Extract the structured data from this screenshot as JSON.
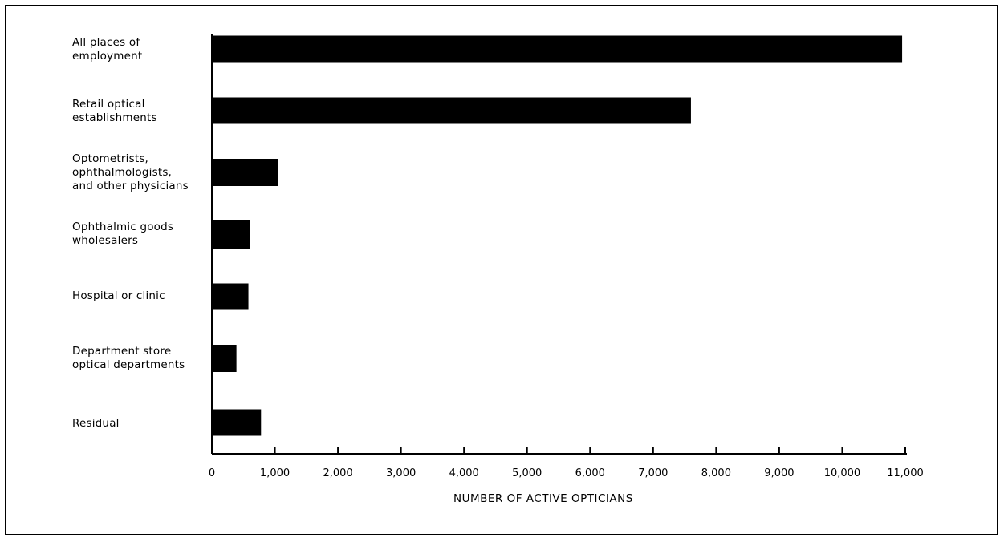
{
  "chart_data": {
    "type": "bar",
    "orientation": "horizontal",
    "categories": [
      "All places of\nemployment",
      "Retail optical\nestablishments",
      "Optometrists,\nophthalmologists,\nand other physicians",
      "Ophthalmic goods\nwholesalers",
      "Hospital or clinic",
      "Department store\noptical departments",
      "Residual"
    ],
    "values": [
      10950,
      7600,
      1050,
      600,
      580,
      390,
      780
    ],
    "xlabel": "NUMBER OF ACTIVE OPTICIANS",
    "xlim": [
      0,
      11000
    ],
    "xticks": [
      0,
      1000,
      2000,
      3000,
      4000,
      5000,
      6000,
      7000,
      8000,
      9000,
      10000,
      11000
    ],
    "xtick_labels": [
      "0",
      "1,000",
      "2,000",
      "3,000",
      "4,000",
      "5,000",
      "6,000",
      "7,000",
      "8,000",
      "9,000",
      "10,000",
      "11,000"
    ],
    "grid": false,
    "bar_color": "#000000"
  }
}
